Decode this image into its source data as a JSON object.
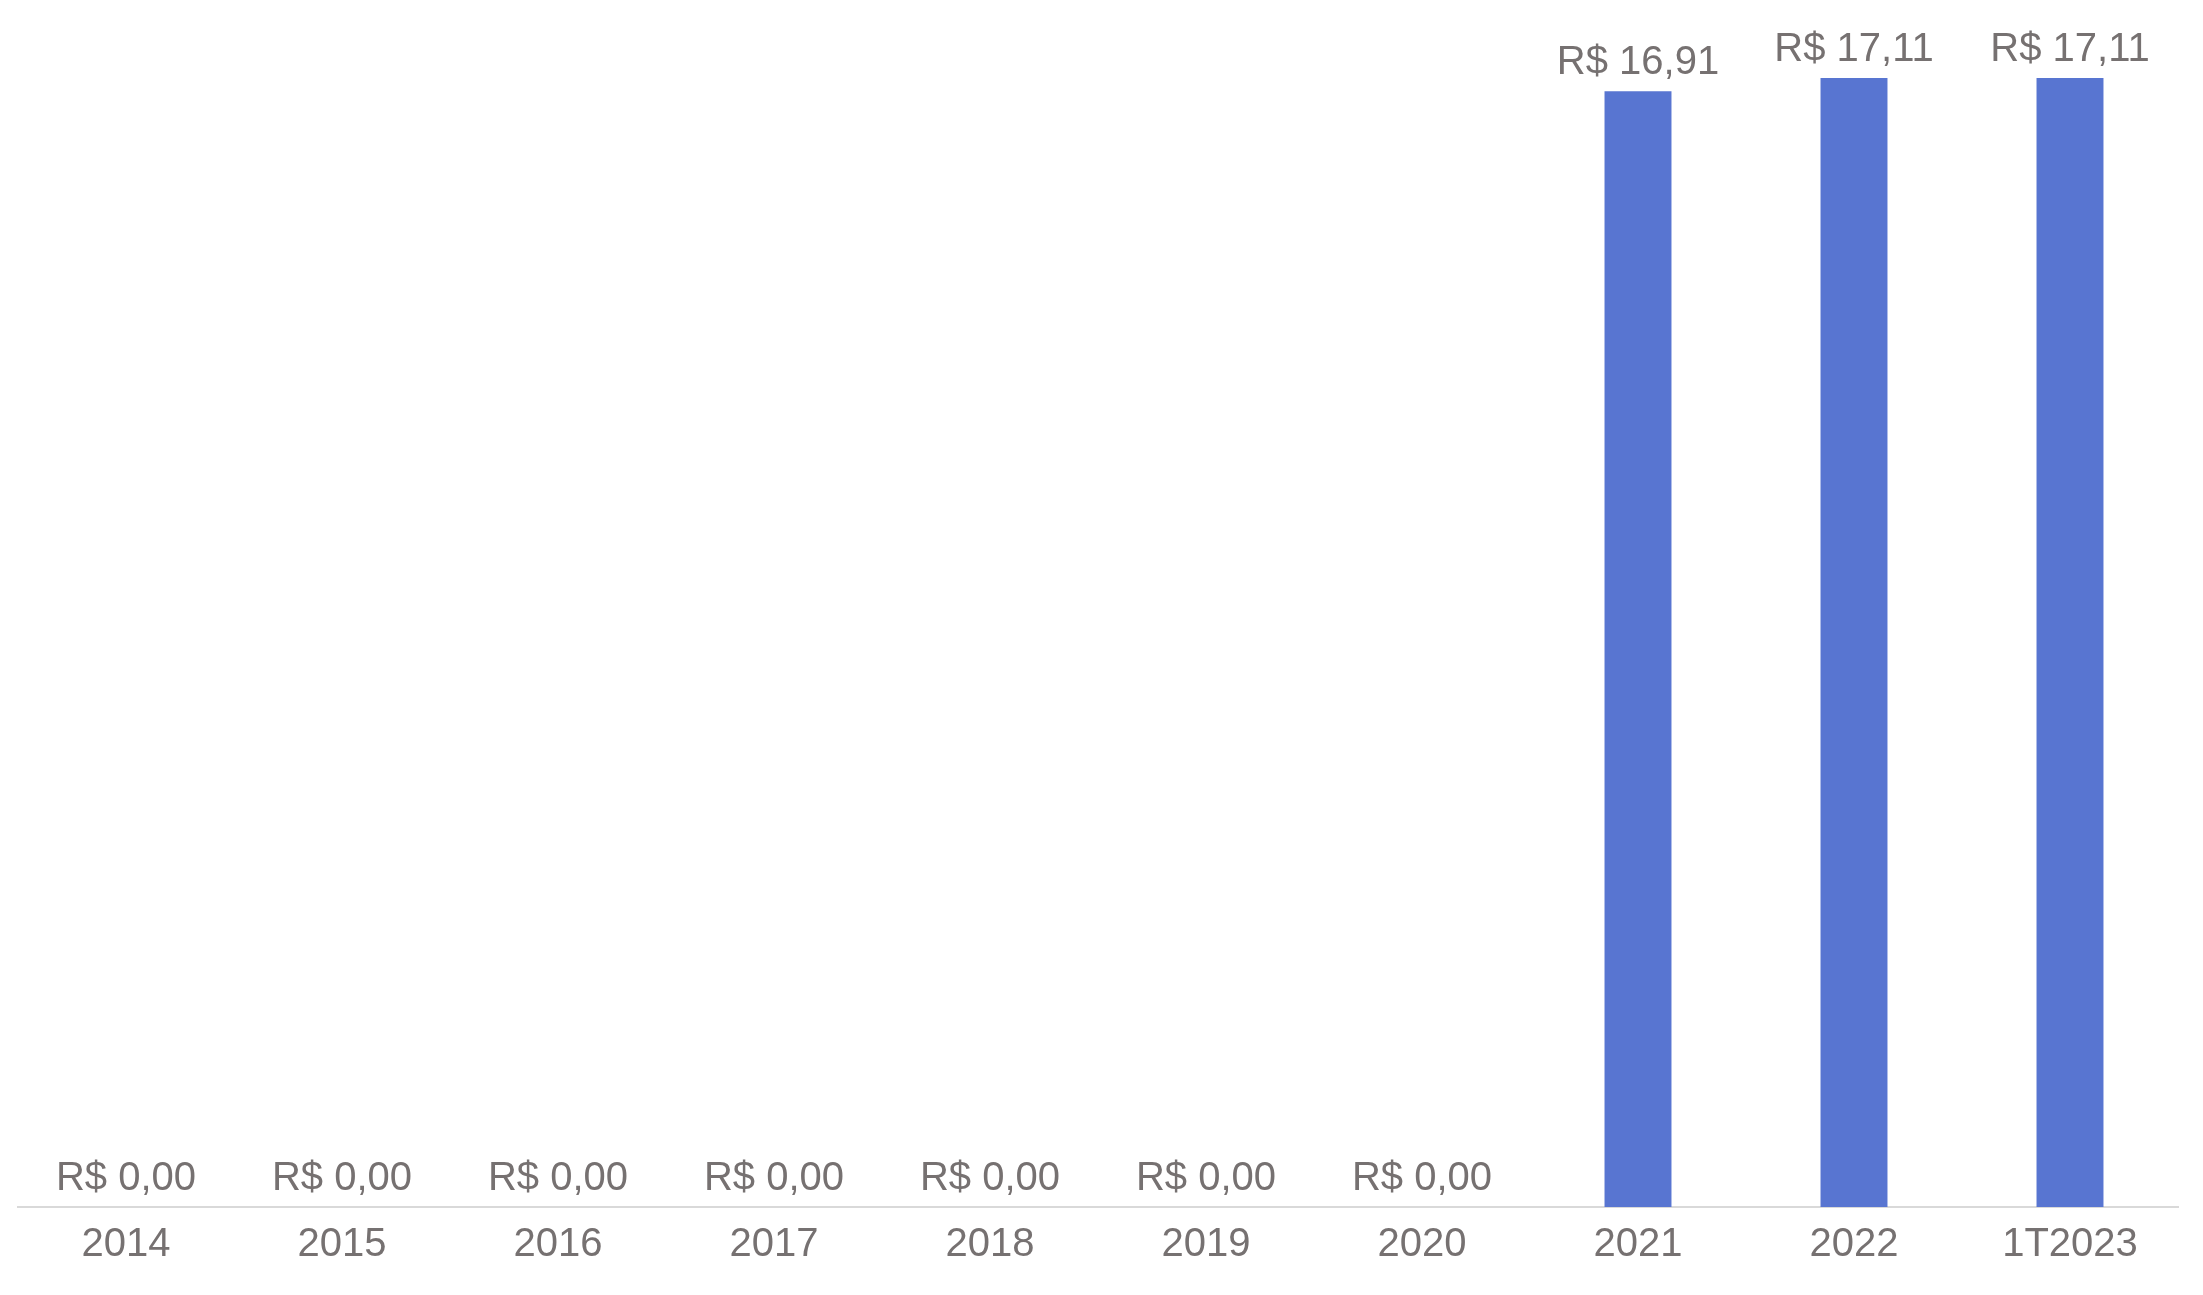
{
  "chart_data": {
    "type": "bar",
    "categories": [
      "2014",
      "2015",
      "2016",
      "2017",
      "2018",
      "2019",
      "2020",
      "2021",
      "2022",
      "1T2023"
    ],
    "values": [
      0,
      0,
      0,
      0,
      0,
      0,
      0,
      16.91,
      17.11,
      17.11
    ],
    "value_labels": [
      "R$ 0,00",
      "R$ 0,00",
      "R$ 0,00",
      "R$ 0,00",
      "R$ 0,00",
      "R$ 0,00",
      "R$ 0,00",
      "R$ 16,91",
      "R$ 17,11",
      "R$ 17,11"
    ],
    "color": "#5875d1",
    "grid": false,
    "legend": false
  }
}
